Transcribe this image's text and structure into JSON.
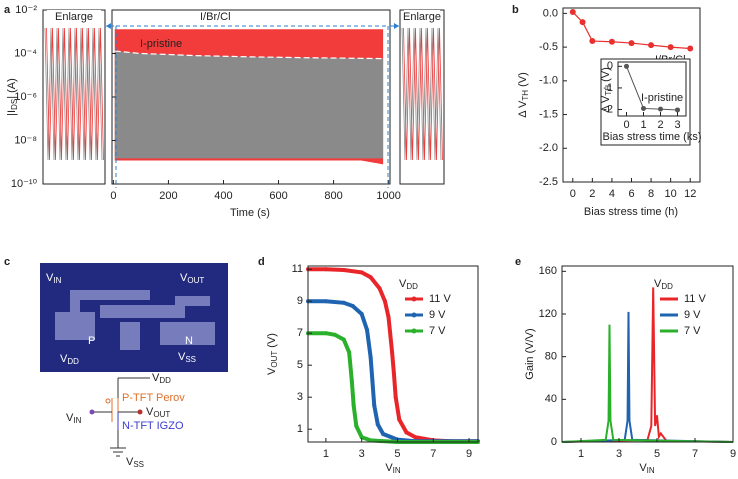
{
  "panel_labels": [
    "a",
    "b",
    "c",
    "d",
    "e"
  ],
  "chart_data": [
    {
      "type": "band",
      "xlabel": "Time (s)",
      "ylabel": [
        "|I",
        "DS",
        "| (A)"
      ],
      "log_y": true,
      "xlim": [
        -5,
        1005
      ],
      "xticks": [
        0,
        200,
        400,
        600,
        800,
        1000
      ],
      "ylim": [
        1e-10,
        0.01
      ],
      "yticks": [
        {
          "value": 1e-10,
          "label": "10⁻¹⁰"
        },
        {
          "value": 1e-08,
          "label": "10⁻⁸"
        },
        {
          "value": 1e-06,
          "label": "10⁻⁶"
        },
        {
          "value": 0.0001,
          "label": "10⁻⁴"
        },
        {
          "value": 0.01,
          "label": "10⁻²"
        }
      ],
      "annotations": [
        "Enlarge",
        "Enlarge"
      ],
      "x": [
        5,
        100,
        200,
        300,
        400,
        500,
        600,
        700,
        800,
        900,
        980
      ],
      "series": [
        {
          "name": "I/Br/Cl",
          "color": "#f23b3b",
          "values": [
            0.0013,
            0.0013,
            0.0013,
            0.0013,
            0.0013,
            0.0013,
            0.0013,
            0.0013,
            0.0013,
            0.0013,
            0.0013
          ],
          "lower": [
            1.2e-09,
            1.2e-09,
            1.2e-09,
            1.2e-09,
            1.2e-09,
            1.2e-09,
            1.2e-09,
            1.2e-09,
            1.2e-09,
            1.2e-09,
            8e-10
          ]
        },
        {
          "name": "I-pristine",
          "color": "#8a8a8a",
          "values": [
            0.00013,
            0.0001,
            9e-05,
            8e-05,
            7.5e-05,
            7e-05,
            6.7e-05,
            6.4e-05,
            6.2e-05,
            6e-05,
            5.8e-05
          ],
          "lower": [
            1.5e-09,
            1.5e-09,
            1.5e-09,
            1.5e-09,
            1.5e-09,
            1.5e-09,
            1.5e-09,
            1.5e-09,
            1.5e-09,
            1.5e-09,
            1.5e-09
          ]
        }
      ]
    },
    {
      "type": "line",
      "xlabel": "Bias stress time (h)",
      "ylabel": [
        "Δ V",
        "TH",
        " (V)"
      ],
      "markers": true,
      "xlim": [
        -1,
        13
      ],
      "xticks": [
        0,
        2,
        4,
        6,
        8,
        10,
        12
      ],
      "ylim": [
        -2.5,
        0.08
      ],
      "yticks": [
        {
          "value": 0,
          "label": "0.0"
        },
        -0.5,
        {
          "value": -1,
          "label": "-1.0"
        },
        -1.5,
        {
          "value": -2,
          "label": "-2.0"
        },
        -2.5
      ],
      "x": [
        0,
        1,
        2,
        4,
        6,
        8,
        10,
        12
      ],
      "series": [
        {
          "name": "I/Br/Cl",
          "color": "#e8312f",
          "values": [
            0.02,
            -0.13,
            -0.41,
            -0.42,
            -0.44,
            -0.47,
            -0.5,
            -0.52
          ]
        }
      ],
      "inset": {
        "type": "line",
        "xlabel": "Bias stress time (ks)",
        "ylabel": [
          "Δ V",
          "TH",
          " (V)"
        ],
        "markers": true,
        "xlim": [
          -0.5,
          3.5
        ],
        "xticks": [
          0,
          1,
          2,
          3
        ],
        "ylim": [
          -2.3,
          0.2
        ],
        "yticks": [
          0,
          -1,
          -2
        ],
        "x": [
          0,
          1,
          2,
          3
        ],
        "series": [
          {
            "name": "I-pristine",
            "color": "#555555",
            "values": [
              0,
              -1.95,
              -1.98,
              -2.02
            ]
          }
        ]
      }
    },
    {
      "type": "line",
      "xlabel": [
        "V",
        "IN"
      ],
      "ylabel": [
        "V",
        "OUT",
        " (V)"
      ],
      "markers": true,
      "legend": "upper right",
      "legend_title": [
        "V",
        "DD"
      ],
      "xlim": [
        0,
        9.5
      ],
      "xticks": [
        1,
        3,
        5,
        7,
        9
      ],
      "ylim": [
        0.2,
        11.2
      ],
      "yticks": [
        1,
        3,
        5,
        7,
        9,
        11
      ],
      "series": [
        {
          "name": "11 V",
          "color": "#e8262a",
          "x": [
            0,
            1,
            2,
            3,
            3.5,
            4,
            4.3,
            4.5,
            4.7,
            4.8,
            4.9,
            5.1,
            5.5,
            6,
            7,
            8,
            9.5
          ],
          "values": [
            11,
            11,
            10.95,
            10.8,
            10.5,
            9.8,
            9,
            8,
            5.8,
            4.5,
            3,
            1.6,
            0.8,
            0.5,
            0.3,
            0.25,
            0.25
          ]
        },
        {
          "name": "9 V",
          "color": "#1f64b0",
          "x": [
            0,
            1,
            2,
            2.5,
            3,
            3.3,
            3.5,
            3.6,
            3.7,
            3.9,
            4.2,
            5,
            6,
            7,
            9.5
          ],
          "values": [
            9,
            9,
            8.9,
            8.7,
            8.2,
            7.2,
            5.5,
            4,
            2.5,
            1.3,
            0.7,
            0.35,
            0.25,
            0.25,
            0.25
          ]
        },
        {
          "name": "7 V",
          "color": "#2bb02b",
          "x": [
            0,
            1,
            1.5,
            2,
            2.3,
            2.45,
            2.55,
            2.7,
            3,
            3.5,
            5,
            9.5
          ],
          "values": [
            7,
            7,
            6.9,
            6.6,
            5.8,
            4,
            2.5,
            1.2,
            0.5,
            0.3,
            0.2,
            0.2
          ]
        }
      ]
    },
    {
      "type": "line",
      "xlabel": [
        "V",
        "IN"
      ],
      "ylabel": "Gain (V/V)",
      "legend": "upper right",
      "legend_title": [
        "V",
        "DD"
      ],
      "xlim": [
        0,
        9
      ],
      "xticks": [
        1,
        3,
        5,
        7,
        9
      ],
      "ylim": [
        0,
        165
      ],
      "yticks": [
        0,
        40,
        80,
        120,
        160
      ],
      "series": [
        {
          "name": "11 V",
          "color": "#e8262a",
          "x": [
            0,
            4.5,
            4.7,
            4.8,
            4.9,
            5,
            5.1,
            5.2,
            5.5,
            9
          ],
          "values": [
            0,
            2,
            15,
            145,
            15,
            25,
            5,
            8,
            1,
            0
          ]
        },
        {
          "name": "9 V",
          "color": "#1f64b0",
          "x": [
            0,
            3.3,
            3.45,
            3.5,
            3.55,
            3.7,
            9
          ],
          "values": [
            0,
            2,
            20,
            122,
            20,
            2,
            0
          ]
        },
        {
          "name": "7 V",
          "color": "#2bb02b",
          "x": [
            0,
            2.3,
            2.45,
            2.5,
            2.55,
            2.7,
            9
          ],
          "values": [
            0,
            2,
            20,
            110,
            20,
            2,
            0
          ]
        }
      ]
    }
  ],
  "circuit": {
    "photo": {
      "vin": [
        "V",
        "IN"
      ],
      "vout": [
        "V",
        "OUT"
      ],
      "vdd": [
        "V",
        "DD"
      ],
      "vss": [
        "V",
        "SS"
      ],
      "p": "P",
      "n": "N"
    },
    "schematic": {
      "vdd": [
        "V",
        "DD"
      ],
      "vin": [
        "V",
        "IN"
      ],
      "vout": [
        "V",
        "OUT"
      ],
      "vss": [
        "V",
        "SS"
      ],
      "ptft": "P-TFT Perov",
      "ntft": "N-TFT IGZO"
    }
  }
}
